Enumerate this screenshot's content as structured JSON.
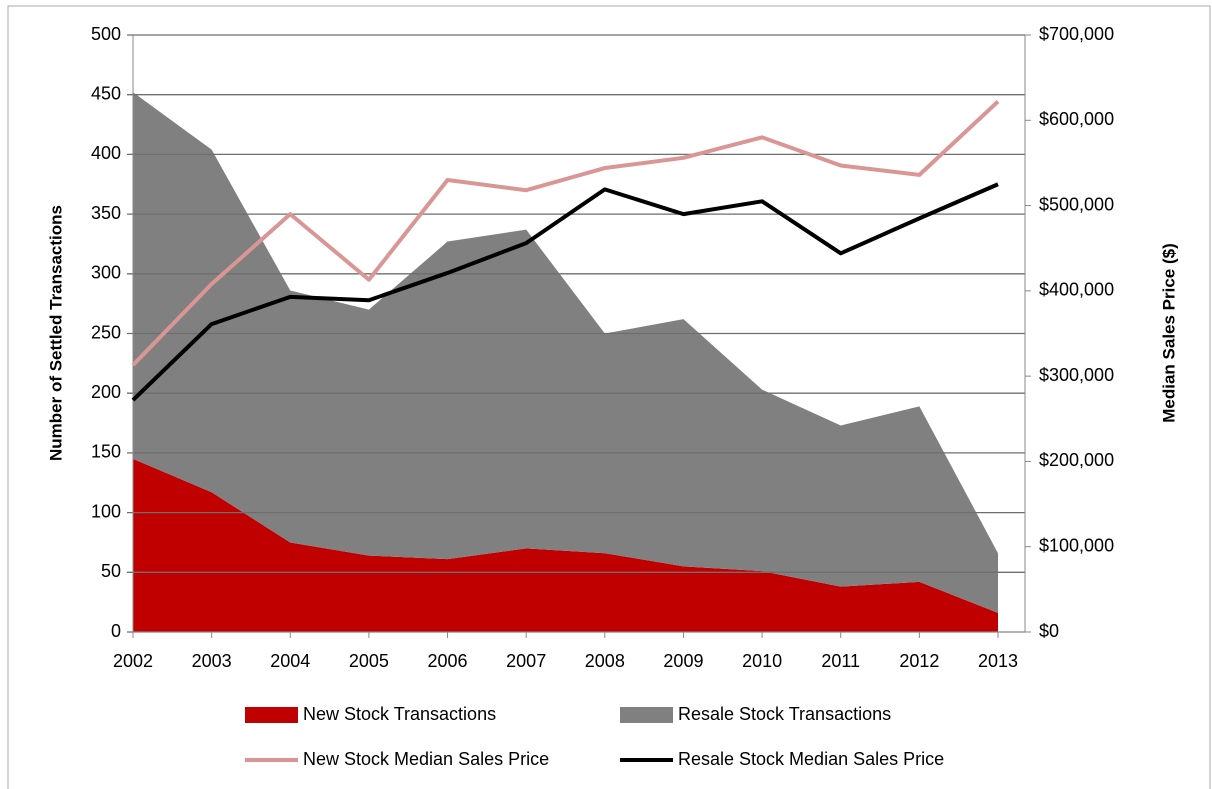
{
  "chart_data": {
    "type": "area",
    "y_label": "Number of Settled Transactions",
    "y2_label": "Median Sales Price ($)",
    "categories": [
      "2002",
      "2003",
      "2004",
      "2005",
      "2006",
      "2007",
      "2008",
      "2009",
      "2010",
      "2011",
      "2012",
      "2013"
    ],
    "ylim": [
      0,
      500
    ],
    "yticks": [
      0,
      50,
      100,
      150,
      200,
      250,
      300,
      350,
      400,
      450,
      500
    ],
    "y2lim": [
      0,
      700000
    ],
    "y2ticks": [
      {
        "value": 0,
        "label": "$0"
      },
      {
        "value": 100000,
        "label": "$100,000"
      },
      {
        "value": 200000,
        "label": "$200,000"
      },
      {
        "value": 300000,
        "label": "$300,000"
      },
      {
        "value": 400000,
        "label": "$400,000"
      },
      {
        "value": 500000,
        "label": "$500,000"
      },
      {
        "value": 600000,
        "label": "$600,000"
      },
      {
        "value": 700000,
        "label": "$700,000"
      }
    ],
    "grid": true,
    "stacked": true,
    "series": [
      {
        "name": "New Stock Transactions",
        "kind": "area",
        "color": "#c00000",
        "values": [
          145,
          117,
          75,
          64,
          61,
          70,
          66,
          55,
          51,
          38,
          42,
          16
        ]
      },
      {
        "name": "Resale Stock Transactions",
        "kind": "area",
        "color": "#808080",
        "values": [
          307,
          287,
          211,
          206,
          266,
          267,
          184,
          207,
          152,
          135,
          147,
          50
        ]
      },
      {
        "name": "New Stock Median Sales Price",
        "kind": "line",
        "axis": "y2",
        "color": "#d99694",
        "values": [
          313000,
          408000,
          490000,
          413000,
          530000,
          518000,
          544000,
          556000,
          580000,
          547000,
          536000,
          622000
        ]
      },
      {
        "name": "Resale Stock Median Sales Price",
        "kind": "line",
        "axis": "y2",
        "color": "#000000",
        "values": [
          272000,
          361000,
          393000,
          389000,
          421000,
          456000,
          519000,
          490000,
          505000,
          444000,
          485000,
          525000
        ]
      }
    ]
  }
}
